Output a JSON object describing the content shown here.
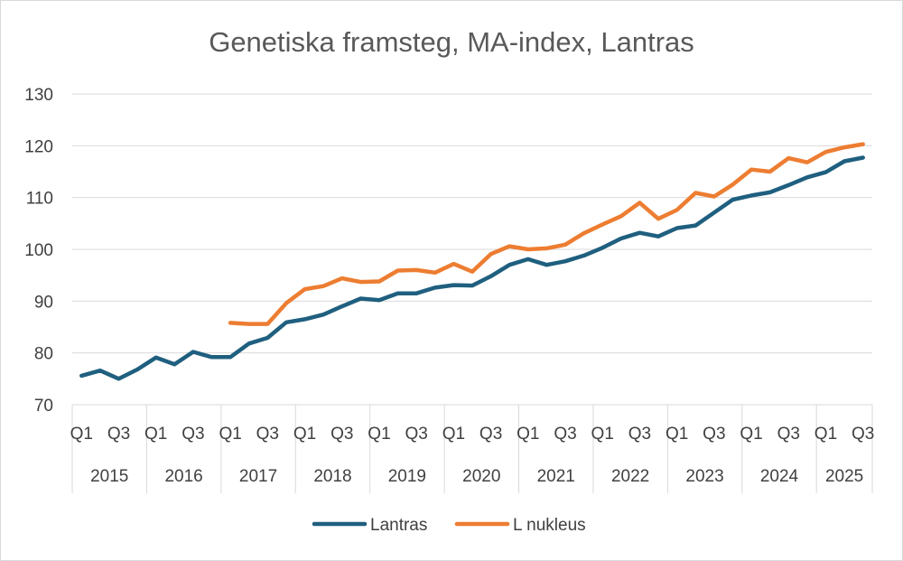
{
  "chart_data": {
    "type": "line",
    "title": "Genetiska framsteg, MA-index, Lantras",
    "xlabel": "",
    "ylabel": "",
    "ylim": [
      70,
      130
    ],
    "yticks": [
      70,
      80,
      90,
      100,
      110,
      120,
      130
    ],
    "grid": true,
    "legend_position": "bottom",
    "years": [
      "2015",
      "2016",
      "2017",
      "2018",
      "2019",
      "2020",
      "2021",
      "2022",
      "2023",
      "2024",
      "2025"
    ],
    "quarter_labels": [
      "Q1",
      "Q3"
    ],
    "x": [
      "2015 Q1",
      "2015 Q2",
      "2015 Q3",
      "2015 Q4",
      "2016 Q1",
      "2016 Q2",
      "2016 Q3",
      "2016 Q4",
      "2017 Q1",
      "2017 Q2",
      "2017 Q3",
      "2017 Q4",
      "2018 Q1",
      "2018 Q2",
      "2018 Q3",
      "2018 Q4",
      "2019 Q1",
      "2019 Q2",
      "2019 Q3",
      "2019 Q4",
      "2020 Q1",
      "2020 Q2",
      "2020 Q3",
      "2020 Q4",
      "2021 Q1",
      "2021 Q2",
      "2021 Q3",
      "2021 Q4",
      "2022 Q1",
      "2022 Q2",
      "2022 Q3",
      "2022 Q4",
      "2023 Q1",
      "2023 Q2",
      "2023 Q3",
      "2023 Q4",
      "2024 Q1",
      "2024 Q2",
      "2024 Q3",
      "2024 Q4",
      "2025 Q1",
      "2025 Q2",
      "2025 Q3"
    ],
    "series": [
      {
        "name": "Lantras",
        "color": "#1f5f7f",
        "values": [
          75.6,
          76.6,
          75.0,
          76.8,
          79.1,
          77.8,
          80.2,
          79.2,
          79.2,
          81.8,
          82.9,
          85.9,
          86.5,
          87.4,
          89.0,
          90.5,
          90.2,
          91.5,
          91.5,
          92.6,
          93.1,
          93.0,
          94.8,
          97.0,
          98.1,
          97.0,
          97.7,
          98.8,
          100.3,
          102.1,
          103.2,
          102.5,
          104.1,
          104.6,
          107.1,
          109.6,
          110.4,
          111.0,
          112.4,
          113.9,
          114.9,
          117.0,
          117.7
        ]
      },
      {
        "name": "L nukleus",
        "color": "#ed7d31",
        "values": [
          null,
          null,
          null,
          null,
          null,
          null,
          null,
          null,
          85.8,
          85.6,
          85.6,
          89.6,
          92.3,
          92.9,
          94.4,
          93.7,
          93.8,
          95.9,
          96.0,
          95.5,
          97.2,
          95.7,
          99.1,
          100.6,
          100.0,
          100.2,
          100.9,
          103.1,
          104.8,
          106.4,
          109.0,
          105.9,
          107.6,
          110.9,
          110.2,
          112.5,
          115.4,
          115.0,
          117.6,
          116.8,
          118.8,
          119.7,
          120.3
        ]
      }
    ]
  }
}
